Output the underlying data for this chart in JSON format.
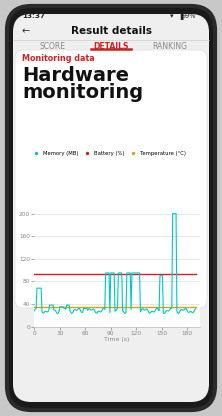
{
  "phone_bg": "#c8c8c8",
  "phone_body": "#1a1a1a",
  "phone_body_edge": "#2a2a2a",
  "screen_bg": "#efefef",
  "card_bg": "#ffffff",
  "status_time": "13:37",
  "status_battery": "99%",
  "title_bar": "Result details",
  "tabs": [
    "SCORE",
    "DETAILS",
    "RANKING"
  ],
  "active_tab": "DETAILS",
  "active_tab_color": "#cc2222",
  "inactive_tab_color": "#888888",
  "section_label": "Monitoring data",
  "section_label_color": "#cc2222",
  "hw_line1": "Hardware",
  "hw_line2": "monitoring",
  "legend_items": [
    {
      "label": "Memory (MB)",
      "color": "#00c8c8"
    },
    {
      "label": "Battery (%)",
      "color": "#cc2222"
    },
    {
      "label": "Temperature (°C)",
      "color": "#d4a800"
    }
  ],
  "xlabel": "Time (s)",
  "xlim": [
    0,
    195
  ],
  "ylim": [
    0,
    210
  ],
  "yticks": [
    0,
    40,
    80,
    120,
    160,
    200
  ],
  "xticks": [
    0,
    30,
    60,
    90,
    120,
    150,
    180
  ],
  "battery_level": 93,
  "temperature_level": 35,
  "memory_base": 28,
  "chart_line_color_memory": "#00c8c8",
  "chart_line_color_battery": "#cc2222",
  "chart_line_color_temp": "#d4a800",
  "grid_color": "#dddddd",
  "text_color": "#111111",
  "tick_color": "#888888"
}
